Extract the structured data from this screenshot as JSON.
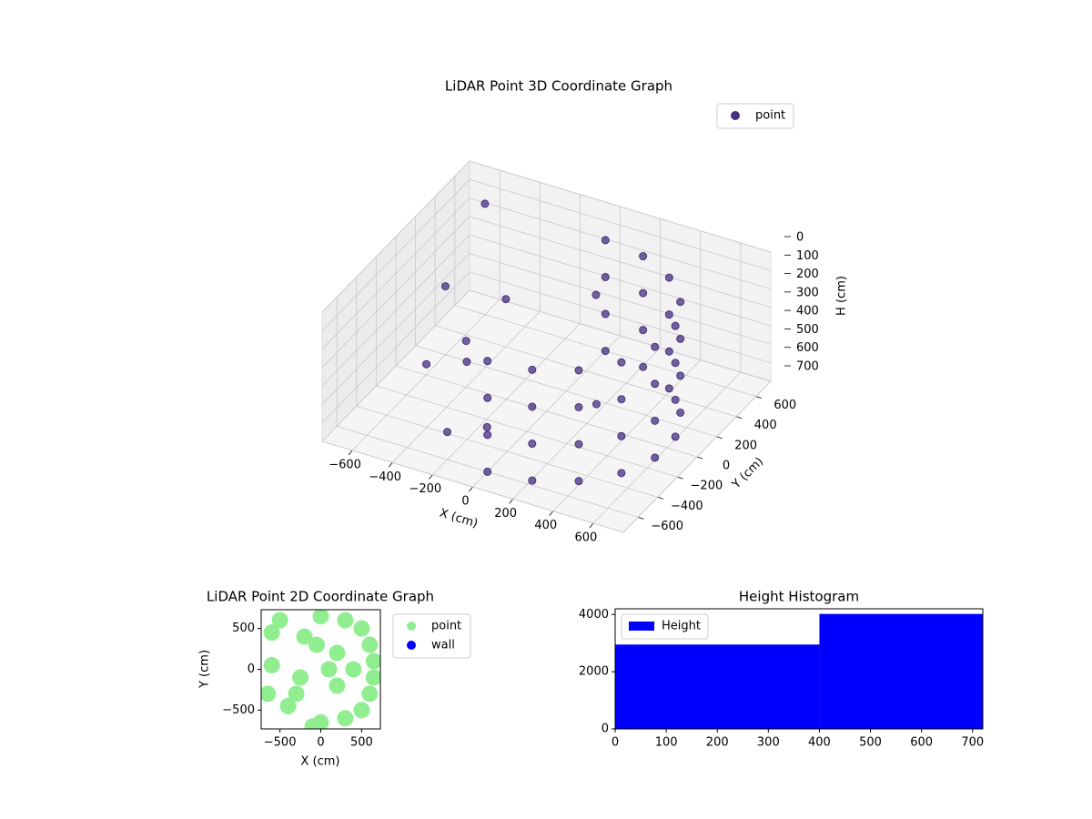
{
  "chart_data": [
    {
      "type": "scatter3d",
      "title": "LiDAR Point 3D Coordinate Graph",
      "xlabel": "X (cm)",
      "ylabel": "Y (cm)",
      "zlabel": "H (cm)",
      "xlim": [
        -750,
        750
      ],
      "ylim": [
        -750,
        750
      ],
      "zlim": [
        0,
        700
      ],
      "z_inverted": true,
      "xticks": [
        {
          "value": -600,
          "label": "−600"
        },
        {
          "value": -400,
          "label": "−400"
        },
        {
          "value": -200,
          "label": "−200"
        },
        0,
        200,
        400,
        600
      ],
      "yticks": [
        {
          "value": -600,
          "label": "−600"
        },
        {
          "value": -400,
          "label": "−400"
        },
        {
          "value": -200,
          "label": "−200"
        },
        0,
        200,
        400,
        600
      ],
      "zticks": [
        0,
        100,
        200,
        300,
        400,
        500,
        600,
        700
      ],
      "grid": true,
      "legend": "upper right",
      "series": [
        {
          "name": "point",
          "color": "#46307e",
          "x": [
            0,
            205,
            386,
            520,
            591,
            591,
            520,
            386,
            205,
            0,
            0,
            205,
            386,
            520,
            591,
            591,
            520,
            386,
            205,
            0,
            0,
            205,
            386,
            520,
            591,
            591,
            520,
            386,
            205,
            0,
            0,
            205,
            386,
            520,
            591,
            591,
            520,
            386,
            205,
            0,
            -650,
            -500,
            -300,
            -100,
            200,
            -600,
            -200,
            100,
            -400,
            -250
          ],
          "y": [
            -600,
            -564,
            -460,
            -300,
            -104,
            104,
            300,
            460,
            564,
            600,
            -600,
            -564,
            -460,
            -300,
            -104,
            104,
            300,
            460,
            564,
            600,
            -600,
            -564,
            -460,
            -300,
            -104,
            104,
            300,
            460,
            564,
            600,
            -600,
            -564,
            -460,
            -300,
            -104,
            104,
            300,
            460,
            564,
            600,
            300,
            -200,
            200,
            -400,
            100,
            600,
            -600,
            300,
            0,
            -300
          ],
          "h": [
            100,
            100,
            100,
            100,
            100,
            100,
            100,
            100,
            100,
            100,
            300,
            300,
            300,
            300,
            300,
            300,
            300,
            300,
            300,
            300,
            500,
            500,
            500,
            500,
            500,
            500,
            500,
            500,
            500,
            500,
            700,
            700,
            700,
            700,
            700,
            700,
            700,
            700,
            700,
            700,
            400,
            500,
            300,
            600,
            650,
            100,
            550,
            200,
            450,
            350
          ]
        }
      ]
    },
    {
      "type": "scatter",
      "title": "LiDAR Point 2D Coordinate Graph",
      "xlabel": "X (cm)",
      "ylabel": "Y (cm)",
      "xlim": [
        -730,
        730
      ],
      "ylim": [
        -730,
        730
      ],
      "xticks": [
        {
          "value": -500,
          "label": "−500"
        },
        0,
        500
      ],
      "yticks": [
        {
          "value": -500,
          "label": "−500"
        },
        0,
        500
      ],
      "legend": "outside right",
      "series": [
        {
          "name": "point",
          "color": "#90ee90",
          "x": [
            400,
            600,
            600,
            300,
            300,
            0,
            0,
            200,
            200,
            -200,
            -300,
            -500,
            -600,
            -650,
            -400,
            -100,
            -600,
            100,
            500,
            500,
            650,
            650,
            -50,
            -250
          ],
          "y": [
            0,
            300,
            -300,
            600,
            -600,
            650,
            -650,
            200,
            -200,
            400,
            -300,
            600,
            450,
            -300,
            -450,
            -700,
            50,
            0,
            500,
            -500,
            100,
            -100,
            300,
            -100
          ]
        },
        {
          "name": "wall",
          "color": "#0000ff",
          "x": [],
          "y": []
        }
      ]
    },
    {
      "type": "histogram",
      "title": "Height Histogram",
      "bins": [
        0,
        400,
        720
      ],
      "xlim": [
        0,
        720
      ],
      "ylim": [
        0,
        4200
      ],
      "xticks": [
        0,
        100,
        200,
        300,
        400,
        500,
        600,
        700
      ],
      "yticks": [
        0,
        2000,
        4000
      ],
      "legend": "upper left",
      "series": [
        {
          "name": "Height",
          "color": "#0000ff",
          "values": [
            2950,
            4020
          ]
        }
      ]
    }
  ]
}
